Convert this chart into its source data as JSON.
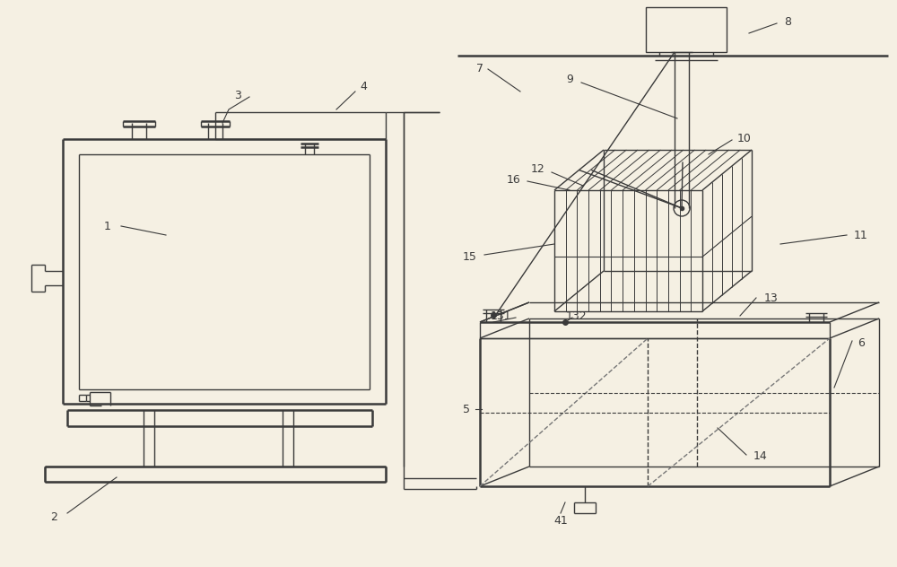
{
  "bg_color": "#f5f0e3",
  "line_color": "#3a3a3a",
  "lw": 1.0,
  "tlw": 1.8
}
